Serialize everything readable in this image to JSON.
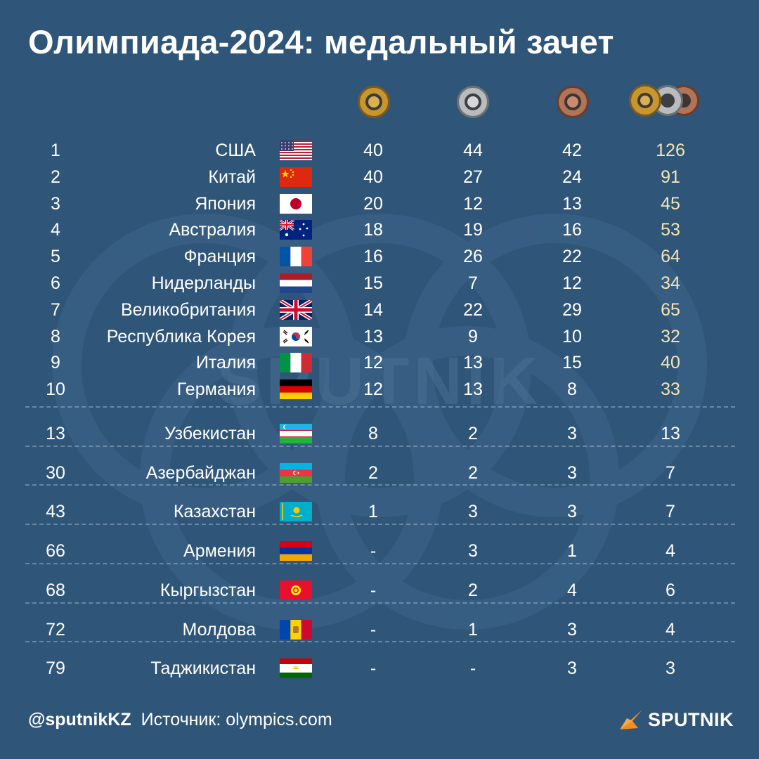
{
  "title": "Олимпиада-2024: медальный зачет",
  "headers": {
    "gold_icon": "gold-medal-icon",
    "silver_icon": "silver-medal-icon",
    "bronze_icon": "bronze-medal-icon",
    "total_icon": "all-medals-icon"
  },
  "colors": {
    "background": "#2f5578",
    "gold": "#c8962e",
    "silver": "#a7a9ac",
    "bronze": "#a8674a",
    "total_text_top": "#f4e6b4",
    "accent_orange": "#f28c1e"
  },
  "rows": [
    {
      "rank": "1",
      "country": "США",
      "flag": "usa-flag-icon",
      "gold": "40",
      "silver": "44",
      "bronze": "42",
      "total": "126"
    },
    {
      "rank": "2",
      "country": "Китай",
      "flag": "china-flag-icon",
      "gold": "40",
      "silver": "27",
      "bronze": "24",
      "total": "91"
    },
    {
      "rank": "3",
      "country": "Япония",
      "flag": "japan-flag-icon",
      "gold": "20",
      "silver": "12",
      "bronze": "13",
      "total": "45"
    },
    {
      "rank": "4",
      "country": "Австралия",
      "flag": "australia-flag-icon",
      "gold": "18",
      "silver": "19",
      "bronze": "16",
      "total": "53"
    },
    {
      "rank": "5",
      "country": "Франция",
      "flag": "france-flag-icon",
      "gold": "16",
      "silver": "26",
      "bronze": "22",
      "total": "64"
    },
    {
      "rank": "6",
      "country": "Нидерланды",
      "flag": "netherlands-flag-icon",
      "gold": "15",
      "silver": "7",
      "bronze": "12",
      "total": "34"
    },
    {
      "rank": "7",
      "country": "Великобритания",
      "flag": "uk-flag-icon",
      "gold": "14",
      "silver": "22",
      "bronze": "29",
      "total": "65"
    },
    {
      "rank": "8",
      "country": "Республика Корея",
      "flag": "korea-flag-icon",
      "gold": "13",
      "silver": "9",
      "bronze": "10",
      "total": "32"
    },
    {
      "rank": "9",
      "country": "Италия",
      "flag": "italy-flag-icon",
      "gold": "12",
      "silver": "13",
      "bronze": "15",
      "total": "40"
    },
    {
      "rank": "10",
      "country": "Германия",
      "flag": "germany-flag-icon",
      "gold": "12",
      "silver": "13",
      "bronze": "8",
      "total": "33"
    }
  ],
  "lower_rows": [
    {
      "rank": "13",
      "country": "Узбекистан",
      "flag": "uzbekistan-flag-icon",
      "gold": "8",
      "silver": "2",
      "bronze": "3",
      "total": "13"
    },
    {
      "rank": "30",
      "country": "Азербайджан",
      "flag": "azerbaijan-flag-icon",
      "gold": "2",
      "silver": "2",
      "bronze": "3",
      "total": "7"
    },
    {
      "rank": "43",
      "country": "Казахстан",
      "flag": "kazakhstan-flag-icon",
      "gold": "1",
      "silver": "3",
      "bronze": "3",
      "total": "7"
    },
    {
      "rank": "66",
      "country": "Армения",
      "flag": "armenia-flag-icon",
      "gold": "-",
      "silver": "3",
      "bronze": "1",
      "total": "4"
    },
    {
      "rank": "68",
      "country": "Кыргызстан",
      "flag": "kyrgyzstan-flag-icon",
      "gold": "-",
      "silver": "2",
      "bronze": "4",
      "total": "6"
    },
    {
      "rank": "72",
      "country": "Молдова",
      "flag": "moldova-flag-icon",
      "gold": "-",
      "silver": "1",
      "bronze": "3",
      "total": "4"
    },
    {
      "rank": "79",
      "country": "Таджикистан",
      "flag": "tajikistan-flag-icon",
      "gold": "-",
      "silver": "-",
      "bronze": "3",
      "total": "3"
    }
  ],
  "footer": {
    "handle": "@sputnikKZ",
    "source": "Источник: olympics.com",
    "brand": "SPUTNIK",
    "brand_icon": "sputnik-logo-icon"
  },
  "watermark": "SPUTNIK"
}
